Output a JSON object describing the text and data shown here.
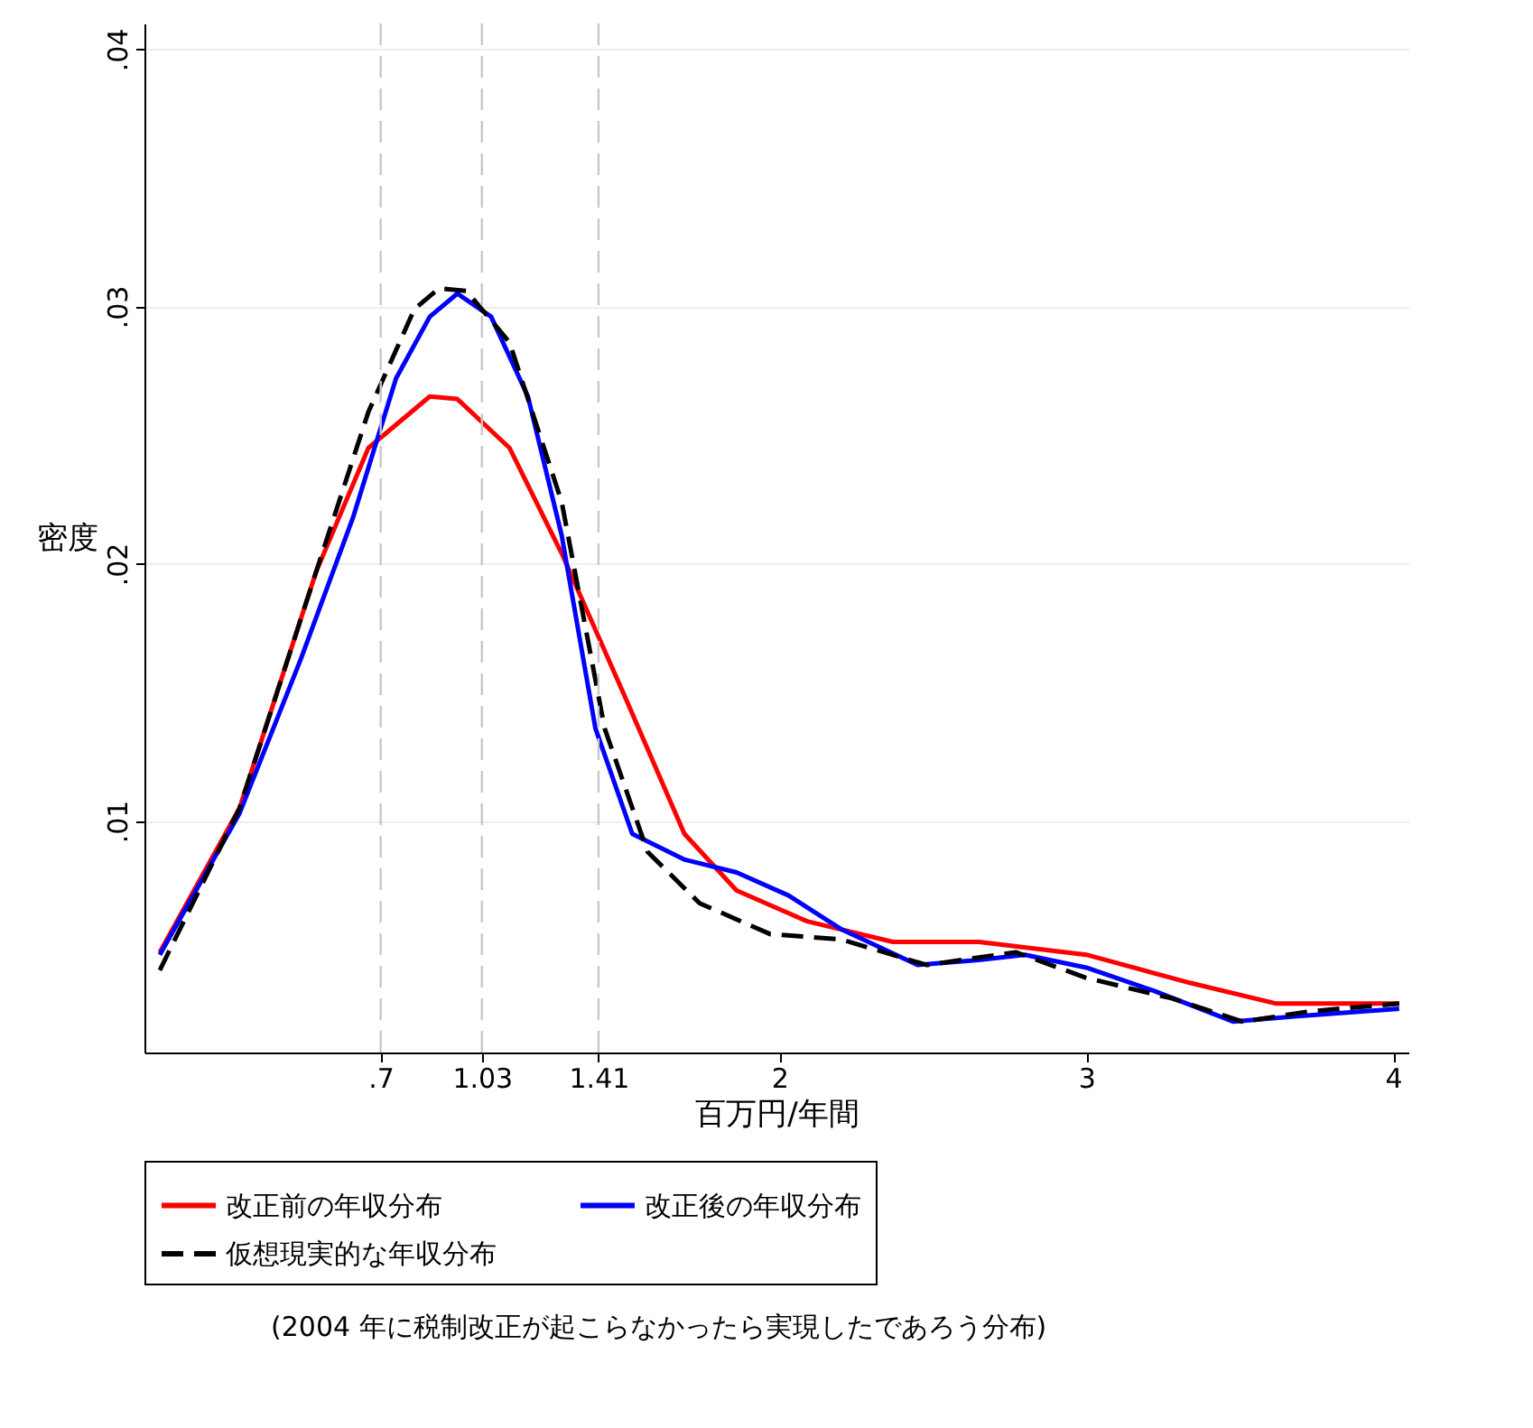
{
  "chart_data": {
    "type": "line",
    "xlabel": "百万円/年間",
    "ylabel": "密度",
    "xlim": [
      -0.07,
      4.05
    ],
    "ylim": [
      0.001,
      0.041
    ],
    "xticks": [
      {
        "value": 0.7,
        "label": ".7"
      },
      1.03,
      1.41,
      2,
      3,
      4
    ],
    "yticks": [
      {
        "value": 0.01,
        "label": ".01"
      },
      {
        "value": 0.02,
        "label": ".02"
      },
      {
        "value": 0.03,
        "label": ".03"
      },
      {
        "value": 0.04,
        "label": ".04"
      }
    ],
    "grid": "y",
    "legend": "bottom",
    "marker": "none",
    "ref_lines": [
      {
        "axis": "x",
        "value": 0.7,
        "color": "#c8c8c8",
        "line_style": "dashed"
      },
      {
        "axis": "x",
        "value": 1.03,
        "color": "#c8c8c8",
        "line_style": "dashed"
      },
      {
        "axis": "x",
        "value": 1.41,
        "color": "#c8c8c8",
        "line_style": "dashed"
      }
    ],
    "series": [
      {
        "name": "改正前の年収分布",
        "color": "#ff0000",
        "line_style": "solid",
        "x": [
          -0.02,
          0.24,
          0.49,
          0.66,
          0.86,
          0.95,
          1.12,
          1.29,
          1.49,
          1.69,
          1.86,
          2.09,
          2.37,
          2.65,
          3.0,
          3.34,
          3.62,
          4.02
        ],
        "values": [
          0.0049,
          0.0105,
          0.0197,
          0.0245,
          0.0265,
          0.0264,
          0.0245,
          0.0204,
          0.015,
          0.0095,
          0.0073,
          0.0061,
          0.0053,
          0.0053,
          0.0048,
          0.0037,
          0.0029,
          0.0029
        ]
      },
      {
        "name": "改正後の年収分布",
        "color": "#0000ff",
        "line_style": "solid",
        "x": [
          -0.02,
          0.24,
          0.44,
          0.61,
          0.75,
          0.86,
          0.95,
          1.06,
          1.18,
          1.29,
          1.4,
          1.52,
          1.69,
          1.86,
          2.03,
          2.2,
          2.45,
          2.65,
          2.8,
          3.0,
          3.22,
          3.48,
          3.68,
          4.02
        ],
        "values": [
          0.0048,
          0.0103,
          0.0163,
          0.0218,
          0.0272,
          0.0296,
          0.0305,
          0.0296,
          0.0265,
          0.0211,
          0.0136,
          0.0095,
          0.0085,
          0.008,
          0.0071,
          0.0058,
          0.0044,
          0.0046,
          0.0048,
          0.0043,
          0.0034,
          0.0022,
          0.0024,
          0.0027
        ]
      },
      {
        "name": "仮想現実的な年収分布",
        "color": "#000000",
        "line_style": "dashed",
        "x": [
          -0.02,
          0.24,
          0.49,
          0.66,
          0.81,
          0.89,
          0.98,
          1.12,
          1.29,
          1.43,
          1.57,
          1.74,
          1.97,
          2.2,
          2.48,
          2.77,
          3.0,
          3.28,
          3.51,
          3.73,
          4.02
        ],
        "values": [
          0.0042,
          0.0105,
          0.0197,
          0.0259,
          0.0299,
          0.0307,
          0.0306,
          0.0286,
          0.0224,
          0.0136,
          0.0088,
          0.0068,
          0.0056,
          0.0054,
          0.0044,
          0.0049,
          0.0039,
          0.0031,
          0.0022,
          0.0026,
          0.0029
        ]
      }
    ],
    "annotations": [
      "(2004 年に税制改正が起こらなかったら実現したであろう分布)"
    ]
  }
}
